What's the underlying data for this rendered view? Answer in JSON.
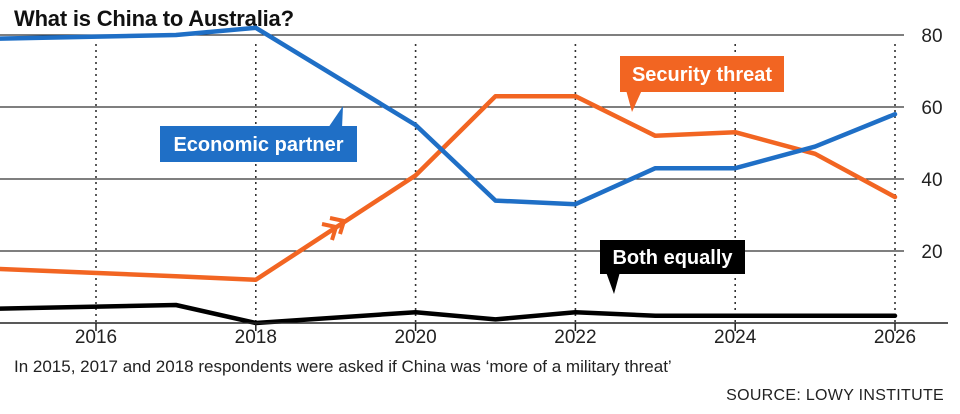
{
  "chart_data": {
    "type": "line",
    "title": "What is China to Australia?",
    "x": [
      2015,
      2017,
      2018,
      2020,
      2021,
      2022,
      2023,
      2024,
      2025,
      2026
    ],
    "xticks": [
      2016,
      2018,
      2020,
      2022,
      2024,
      2026
    ],
    "yticks": [
      20,
      40,
      60,
      80
    ],
    "xlim": [
      2015,
      2026.5
    ],
    "ylim": [
      0,
      85
    ],
    "grid": {
      "horizontal": true,
      "vertical": "dotted"
    },
    "series": [
      {
        "name": "Economic partner",
        "color": "#1f6fc6",
        "x": [
          2015,
          2017,
          2018,
          2020,
          2021,
          2022,
          2023,
          2024,
          2025,
          2026
        ],
        "values": [
          79,
          80,
          82,
          55,
          34,
          33,
          43,
          43,
          49,
          58
        ]
      },
      {
        "name": "Security threat",
        "color": "#f26522",
        "x": [
          2015,
          2017,
          2018,
          2020,
          2021,
          2022,
          2023,
          2024,
          2025,
          2026
        ],
        "values": [
          15,
          13,
          12,
          41,
          63,
          63,
          52,
          53,
          47,
          35
        ]
      },
      {
        "name": "Both equally",
        "color": "#000000",
        "x": [
          2015,
          2017,
          2018,
          2020,
          2021,
          2022,
          2023,
          2024,
          2025,
          2026
        ],
        "values": [
          4,
          5,
          0,
          3,
          1,
          3,
          2,
          2,
          2,
          2
        ]
      }
    ]
  },
  "footnote": "In 2015, 2017 and 2018 respondents were asked if China was ‘more of a military threat’",
  "source": "SOURCE: LOWY INSTITUTE"
}
